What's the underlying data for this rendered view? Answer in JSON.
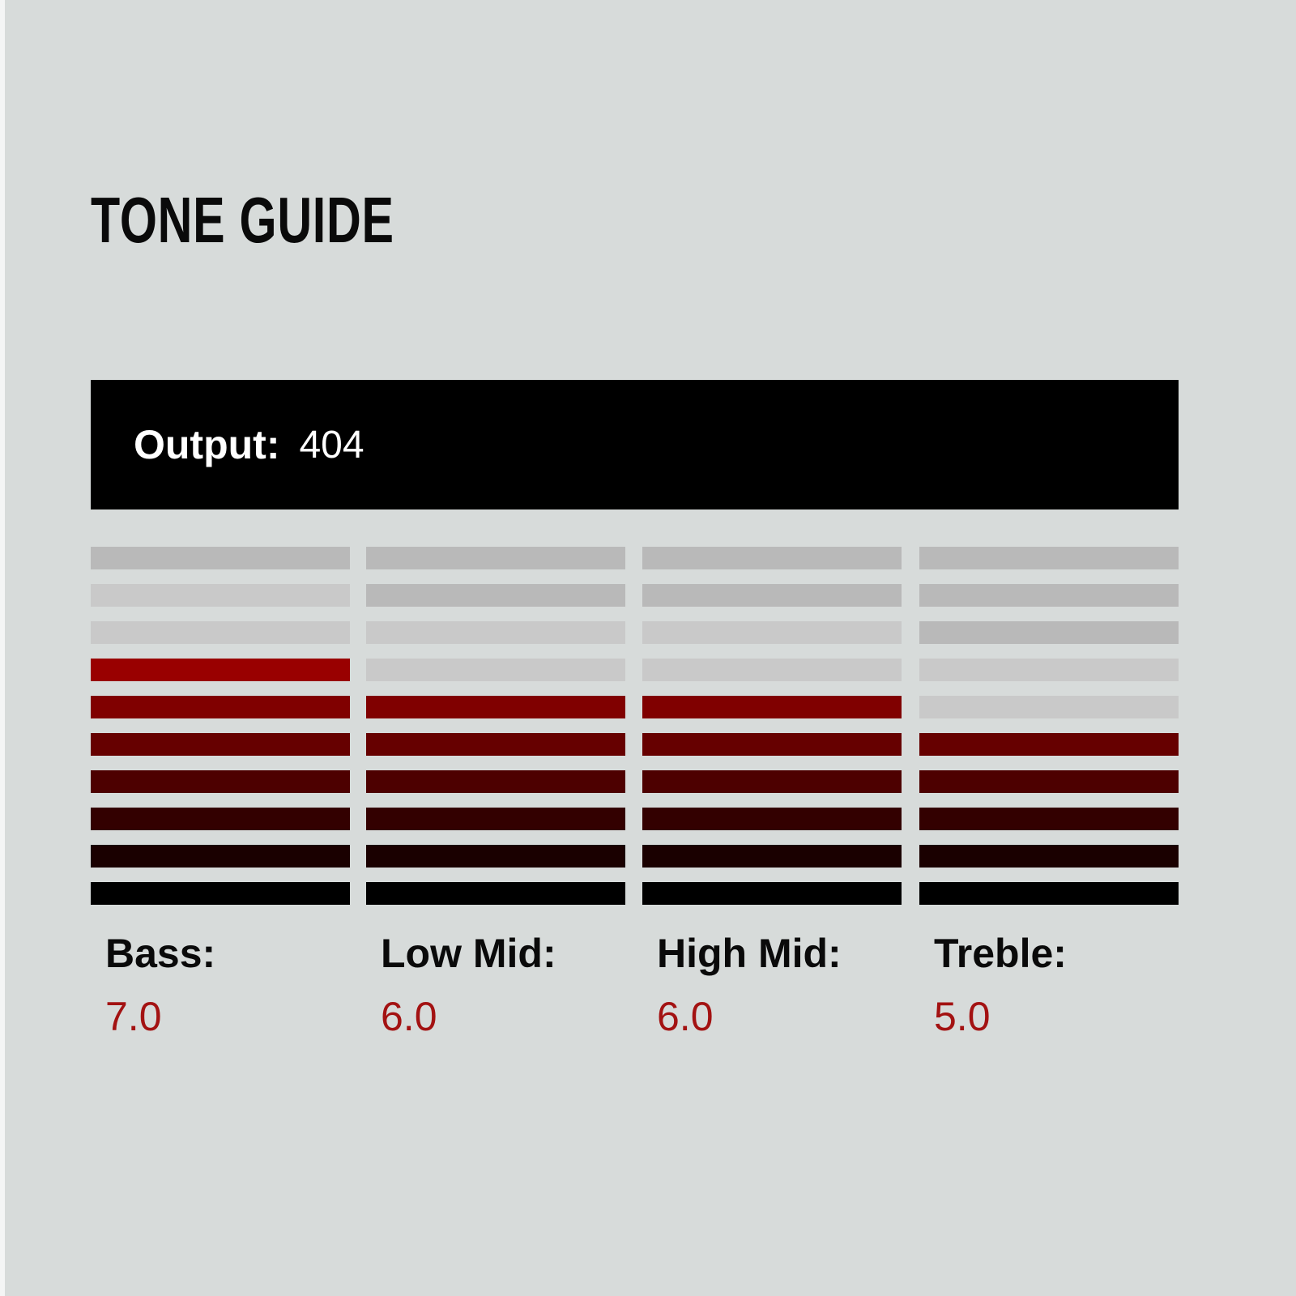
{
  "title": "TONE GUIDE",
  "output": {
    "label": "Output:",
    "value": "404"
  },
  "bands": [
    {
      "label": "Bass:",
      "value": "7.0",
      "level": 7
    },
    {
      "label": "Low Mid:",
      "value": "6.0",
      "level": 6
    },
    {
      "label": "High Mid:",
      "value": "6.0",
      "level": 6
    },
    {
      "label": "Treble:",
      "value": "5.0",
      "level": 5
    }
  ],
  "meter": {
    "segments": 10,
    "lit_colors_bottom_to_top": [
      "#000000",
      "#1a0000",
      "#330000",
      "#4d0000",
      "#660000",
      "#800000",
      "#990000",
      "#b30000",
      "#cc0000",
      "#e60000"
    ],
    "near_off_color": "#c9c9c9",
    "off_color": "#b9b9b9"
  }
}
